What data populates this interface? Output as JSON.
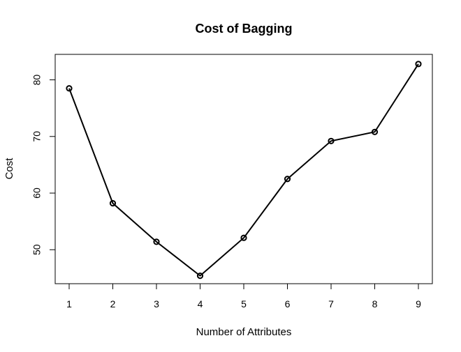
{
  "chart_data": {
    "type": "line",
    "title": "Cost of Bagging",
    "xlabel": "Number of Attributes",
    "ylabel": "Cost",
    "x": [
      1,
      2,
      3,
      4,
      5,
      6,
      7,
      8,
      9
    ],
    "y": [
      78.5,
      58.2,
      51.4,
      45.4,
      52.1,
      62.5,
      69.2,
      70.8,
      82.8
    ],
    "xticks": [
      "1",
      "2",
      "3",
      "4",
      "5",
      "6",
      "7",
      "8",
      "9"
    ],
    "yticks": [
      "50",
      "60",
      "70",
      "80"
    ],
    "xlim": [
      0.68,
      9.32
    ],
    "ylim": [
      44.0,
      84.5
    ],
    "grid": false,
    "markers": "open-circle",
    "line_color": "#000000"
  }
}
